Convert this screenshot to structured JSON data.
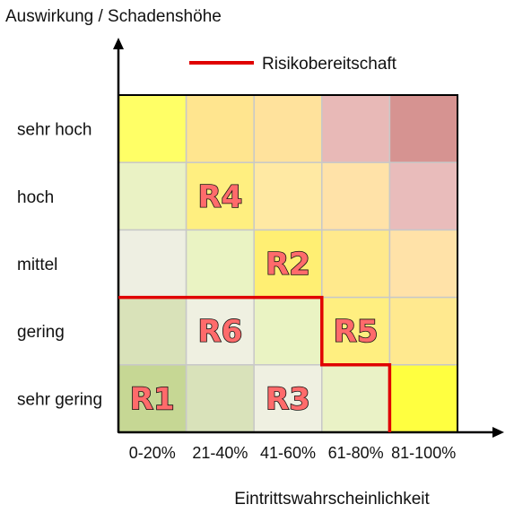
{
  "axes": {
    "y_title": "Auswirkung / Schadenshöhe",
    "x_title": "Eintrittswahrscheinlichkeit"
  },
  "legend": {
    "label": "Risikobereitschaft",
    "color": "#e00000"
  },
  "rows": [
    "sehr hoch",
    "hoch",
    "mittel",
    "gering",
    "sehr gering"
  ],
  "columns": [
    "0-20%",
    "21-40%",
    "41-60%",
    "61-80%",
    "81-100%"
  ],
  "cell_colors": [
    [
      "#ffff66",
      "#ffe58f",
      "#ffe29c",
      "#e8b9b7",
      "#d69391"
    ],
    [
      "#eaf2c4",
      "#ffef80",
      "#ffe9a3",
      "#ffe2a8",
      "#e9bcbb"
    ],
    [
      "#eeefe2",
      "#eaf3c3",
      "#ffef73",
      "#ffe98c",
      "#ffe2a8"
    ],
    [
      "#d9e2b9",
      "#eff0e1",
      "#eaf3c3",
      "#ffef80",
      "#ffe98f"
    ],
    [
      "#c6d794",
      "#d9e2ba",
      "#eff0e1",
      "#eaf2c6",
      "#ffff40"
    ]
  ],
  "risks": [
    {
      "id": "R4",
      "row": 1,
      "col": 1
    },
    {
      "id": "R2",
      "row": 2,
      "col": 2
    },
    {
      "id": "R6",
      "row": 3,
      "col": 1
    },
    {
      "id": "R5",
      "row": 3,
      "col": 3
    },
    {
      "id": "R1",
      "row": 4,
      "col": 0
    },
    {
      "id": "R3",
      "row": 4,
      "col": 2
    }
  ],
  "risk_appetite_path": [
    [
      0,
      3
    ],
    [
      3,
      3
    ],
    [
      3,
      4
    ],
    [
      4,
      4
    ],
    [
      4,
      5
    ]
  ]
}
